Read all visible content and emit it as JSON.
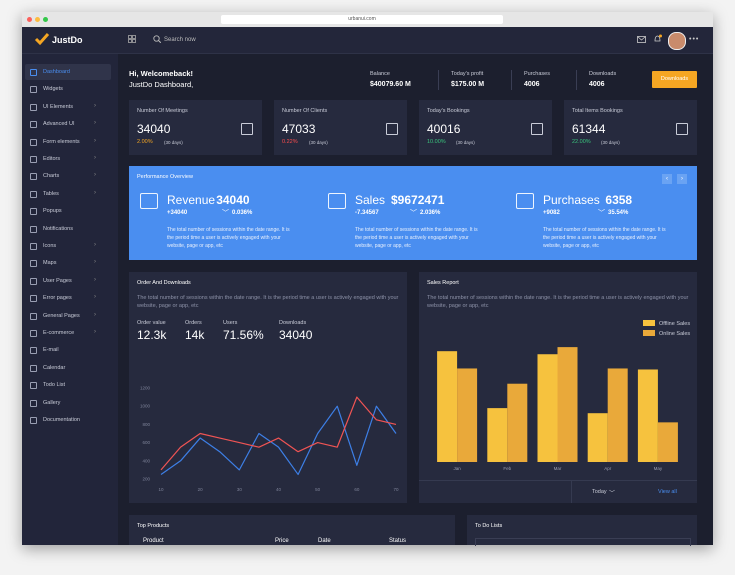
{
  "browser": {
    "url": "urbanui.com"
  },
  "brand": "JustDo",
  "search": "Search now",
  "sidebar": [
    "Dashboard",
    "Widgets",
    "UI Elements",
    "Advanced UI",
    "Form elements",
    "Editors",
    "Charts",
    "Tables",
    "Popups",
    "Notifications",
    "Icons",
    "Maps",
    "User Pages",
    "Error pages",
    "General Pages",
    "E-commerce",
    "E-mail",
    "Calendar",
    "Todo List",
    "Gallery",
    "Documentation"
  ],
  "greeting": {
    "title": "Hi, Welcomeback!",
    "subtitle": "JustDo Dashboard,"
  },
  "stats": [
    {
      "label": "Balance",
      "value": "$40079.60 M"
    },
    {
      "label": "Today's profit",
      "value": "$175.00 M"
    },
    {
      "label": "Purchases",
      "value": "4006"
    },
    {
      "label": "Downloads",
      "value": "4006"
    }
  ],
  "button": "Downloads",
  "cards": [
    {
      "title": "Number Of Meetings",
      "value": "34040",
      "change": "2.00%",
      "period": "(30 days)",
      "color": "#f5a623"
    },
    {
      "title": "Number Of Clients",
      "value": "47033",
      "change": "0.22%",
      "period": "(30 days)",
      "color": "#ff4d4d"
    },
    {
      "title": "Today's Bookings",
      "value": "40016",
      "change": "10.00%",
      "period": "(30 days)",
      "color": "#3ac47d"
    },
    {
      "title": "Total Items Bookings",
      "value": "61344",
      "change": "22.00%",
      "period": "(30 days)",
      "color": "#3ac47d"
    }
  ],
  "performance": {
    "title": "Performance Overview",
    "items": [
      {
        "name": "Revenue",
        "value": "34040",
        "delta": "+34040",
        "percent": "0.036%",
        "text": "The total number of sessions within the date range. It is the period time a user is actively engaged with your website, page or app, etc"
      },
      {
        "name": "Sales",
        "value": "$9672471",
        "delta": "-7.34567",
        "percent": "2.036%",
        "text": "The total number of sessions within the date range. It is the period time a user is actively engaged with your website, page or app, etc"
      },
      {
        "name": "Purchases",
        "value": "6358",
        "delta": "+9082",
        "percent": "35.54%",
        "text": "The total number of sessions within the date range. It is the period time a user is actively engaged with your website, page or app, etc"
      }
    ]
  },
  "orders": {
    "text": "The total number of sessions within the date range. It is the period time a user is actively engaged with your website, page or app, etc",
    "stats": [
      {
        "label": "Order value",
        "value": "12.3k"
      },
      {
        "label": "Orders",
        "value": "14k"
      },
      {
        "label": "Users",
        "value": "71.56%"
      },
      {
        "label": "Downloads",
        "value": "34040"
      }
    ]
  },
  "sales": {
    "text": "The total number of sessions within the date range. It is the period time a user is actively engaged with your website, page or app, etc",
    "footer": [
      "Today",
      "View all"
    ]
  },
  "chart_data": [
    {
      "type": "line",
      "title": "Order And Downloads",
      "x": [
        10,
        15,
        20,
        25,
        30,
        35,
        40,
        45,
        50,
        55,
        60,
        65,
        70
      ],
      "series": [
        {
          "color": "#3d7fe6",
          "values": [
            250,
            400,
            650,
            500,
            300,
            700,
            550,
            250,
            700,
            1000,
            350,
            1000,
            700
          ]
        },
        {
          "color": "#f05454",
          "values": [
            300,
            550,
            700,
            650,
            600,
            550,
            650,
            500,
            600,
            550,
            1100,
            850,
            800
          ]
        }
      ],
      "xlim": [
        10,
        70
      ],
      "xticks": [
        10,
        20,
        30,
        40,
        50,
        60,
        70
      ],
      "ylim": [
        200,
        1200
      ],
      "yticks": [
        200,
        400,
        600,
        800,
        1000,
        1200
      ],
      "grid": false
    },
    {
      "type": "bar",
      "title": "Sales Report",
      "categories": [
        "Jan",
        "Feb",
        "Mar",
        "Apr",
        "May"
      ],
      "series": [
        {
          "name": "Offline Sales",
          "color": "#f6c23e",
          "values": [
            109,
            53,
            106,
            48,
            91
          ]
        },
        {
          "name": "Online Sales",
          "color": "#e9a93a",
          "values": [
            92,
            77,
            113,
            92,
            39
          ]
        }
      ],
      "ylim": [
        0,
        120
      ]
    }
  ],
  "top_products": {
    "title": "Top Products",
    "columns": [
      "Product",
      "Price",
      "Date",
      "Status"
    ]
  },
  "todo": {
    "title": "To Do Lists"
  }
}
